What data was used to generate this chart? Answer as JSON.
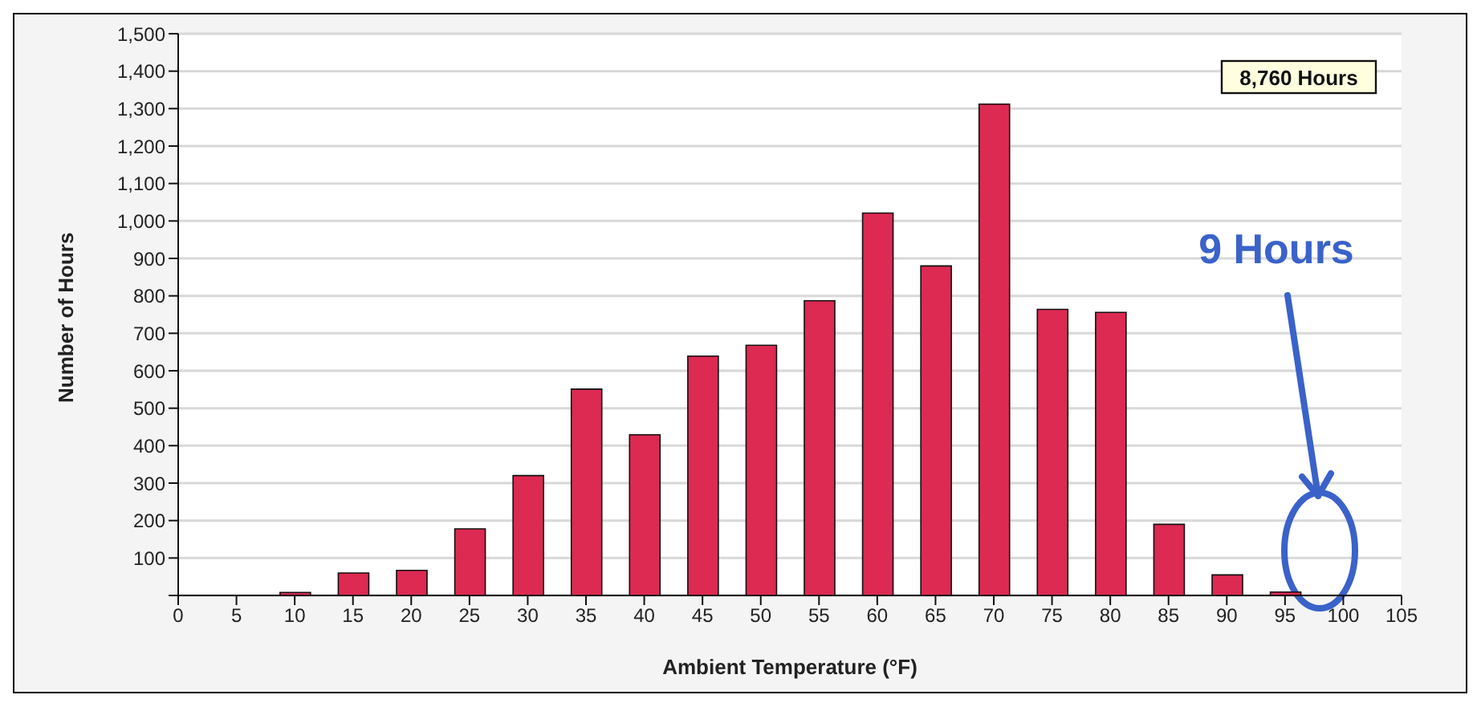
{
  "chart_data": {
    "type": "bar",
    "xlabel": "Ambient Temperature (°F)",
    "ylabel": "Number of Hours",
    "x": [
      10,
      15,
      20,
      25,
      30,
      35,
      40,
      45,
      50,
      55,
      60,
      65,
      70,
      75,
      80,
      85,
      90,
      95
    ],
    "values": [
      8,
      60,
      67,
      178,
      320,
      551,
      429,
      639,
      668,
      787,
      1021,
      880,
      1312,
      764,
      756,
      190,
      55,
      9
    ],
    "color": "#dc2a52",
    "xlim": [
      0,
      105
    ],
    "xticks": [
      0,
      5,
      10,
      15,
      20,
      25,
      30,
      35,
      40,
      45,
      50,
      55,
      60,
      65,
      70,
      75,
      80,
      85,
      90,
      95,
      100,
      105
    ],
    "ylim": [
      0,
      1500
    ],
    "yticks": [
      {
        "value": 0,
        "label": null
      },
      100,
      200,
      300,
      400,
      500,
      600,
      700,
      800,
      900,
      {
        "value": 1000,
        "label": "1,000"
      },
      {
        "value": 1100,
        "label": "1,100"
      },
      {
        "value": 1200,
        "label": "1,200"
      },
      {
        "value": 1300,
        "label": "1,300"
      },
      {
        "value": 1400,
        "label": "1,400"
      },
      {
        "value": 1500,
        "label": "1,500"
      }
    ],
    "grid": "y",
    "annotations": [
      "8,760 Hours",
      "9 Hours"
    ]
  }
}
